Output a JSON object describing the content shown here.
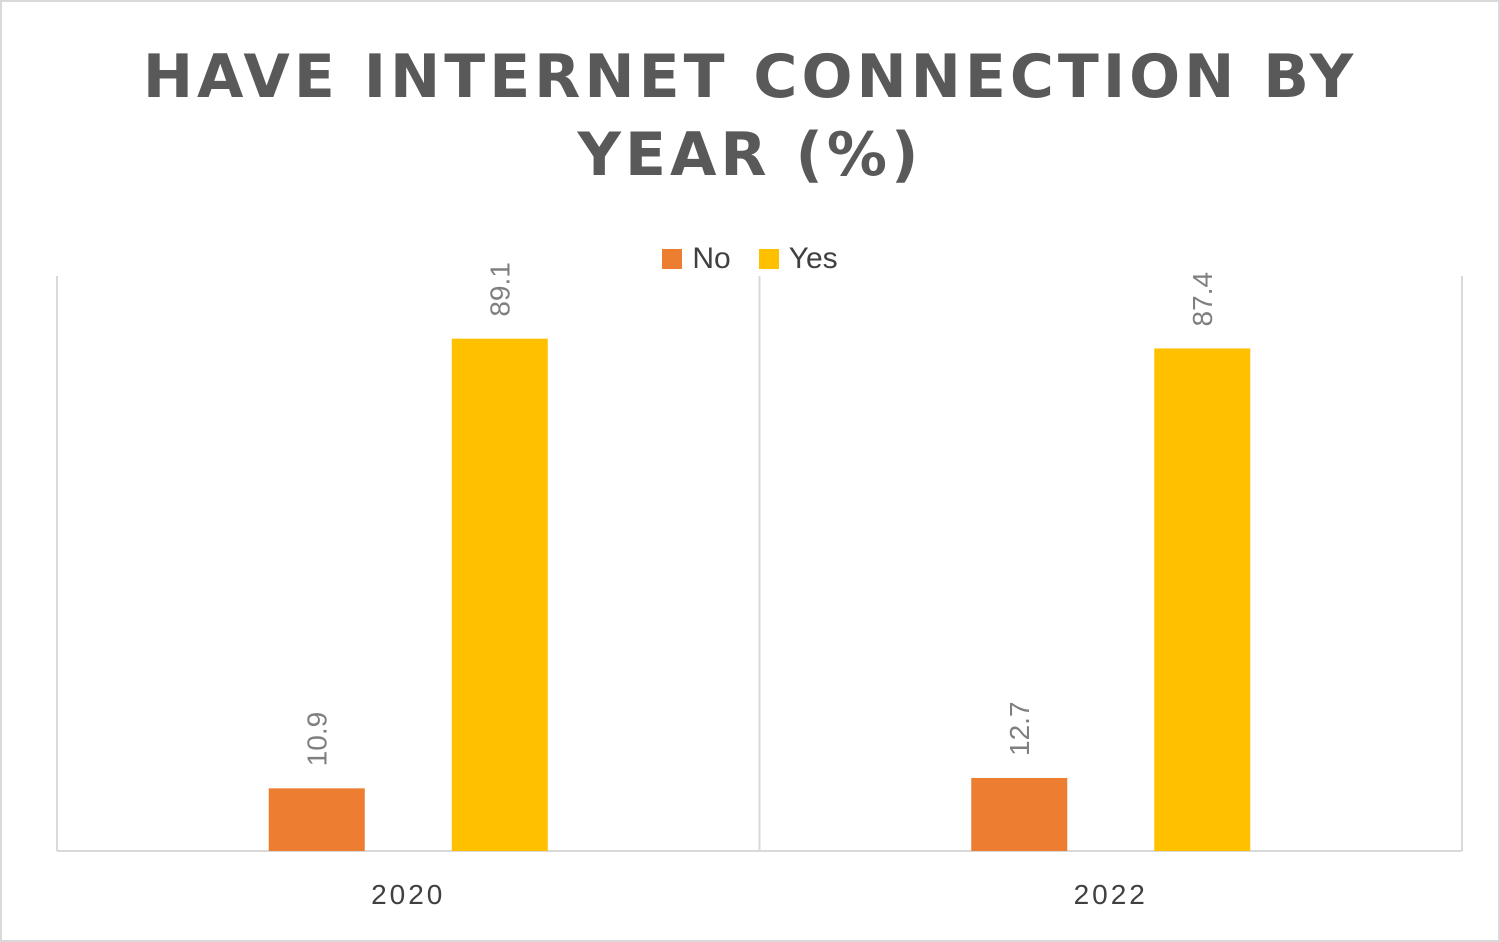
{
  "chart_data": {
    "type": "bar",
    "title": "HAVE INTERNET CONNECTION BY YEAR (%)",
    "categories": [
      "2020",
      "2022"
    ],
    "series": [
      {
        "name": "No",
        "values": [
          10.9,
          12.7
        ],
        "color": "#ED7D31"
      },
      {
        "name": "Yes",
        "values": [
          89.1,
          87.4
        ],
        "color": "#FFC000"
      }
    ],
    "data_labels": true,
    "ylim": [
      0,
      100
    ],
    "legend_position": "top",
    "grid": false
  }
}
